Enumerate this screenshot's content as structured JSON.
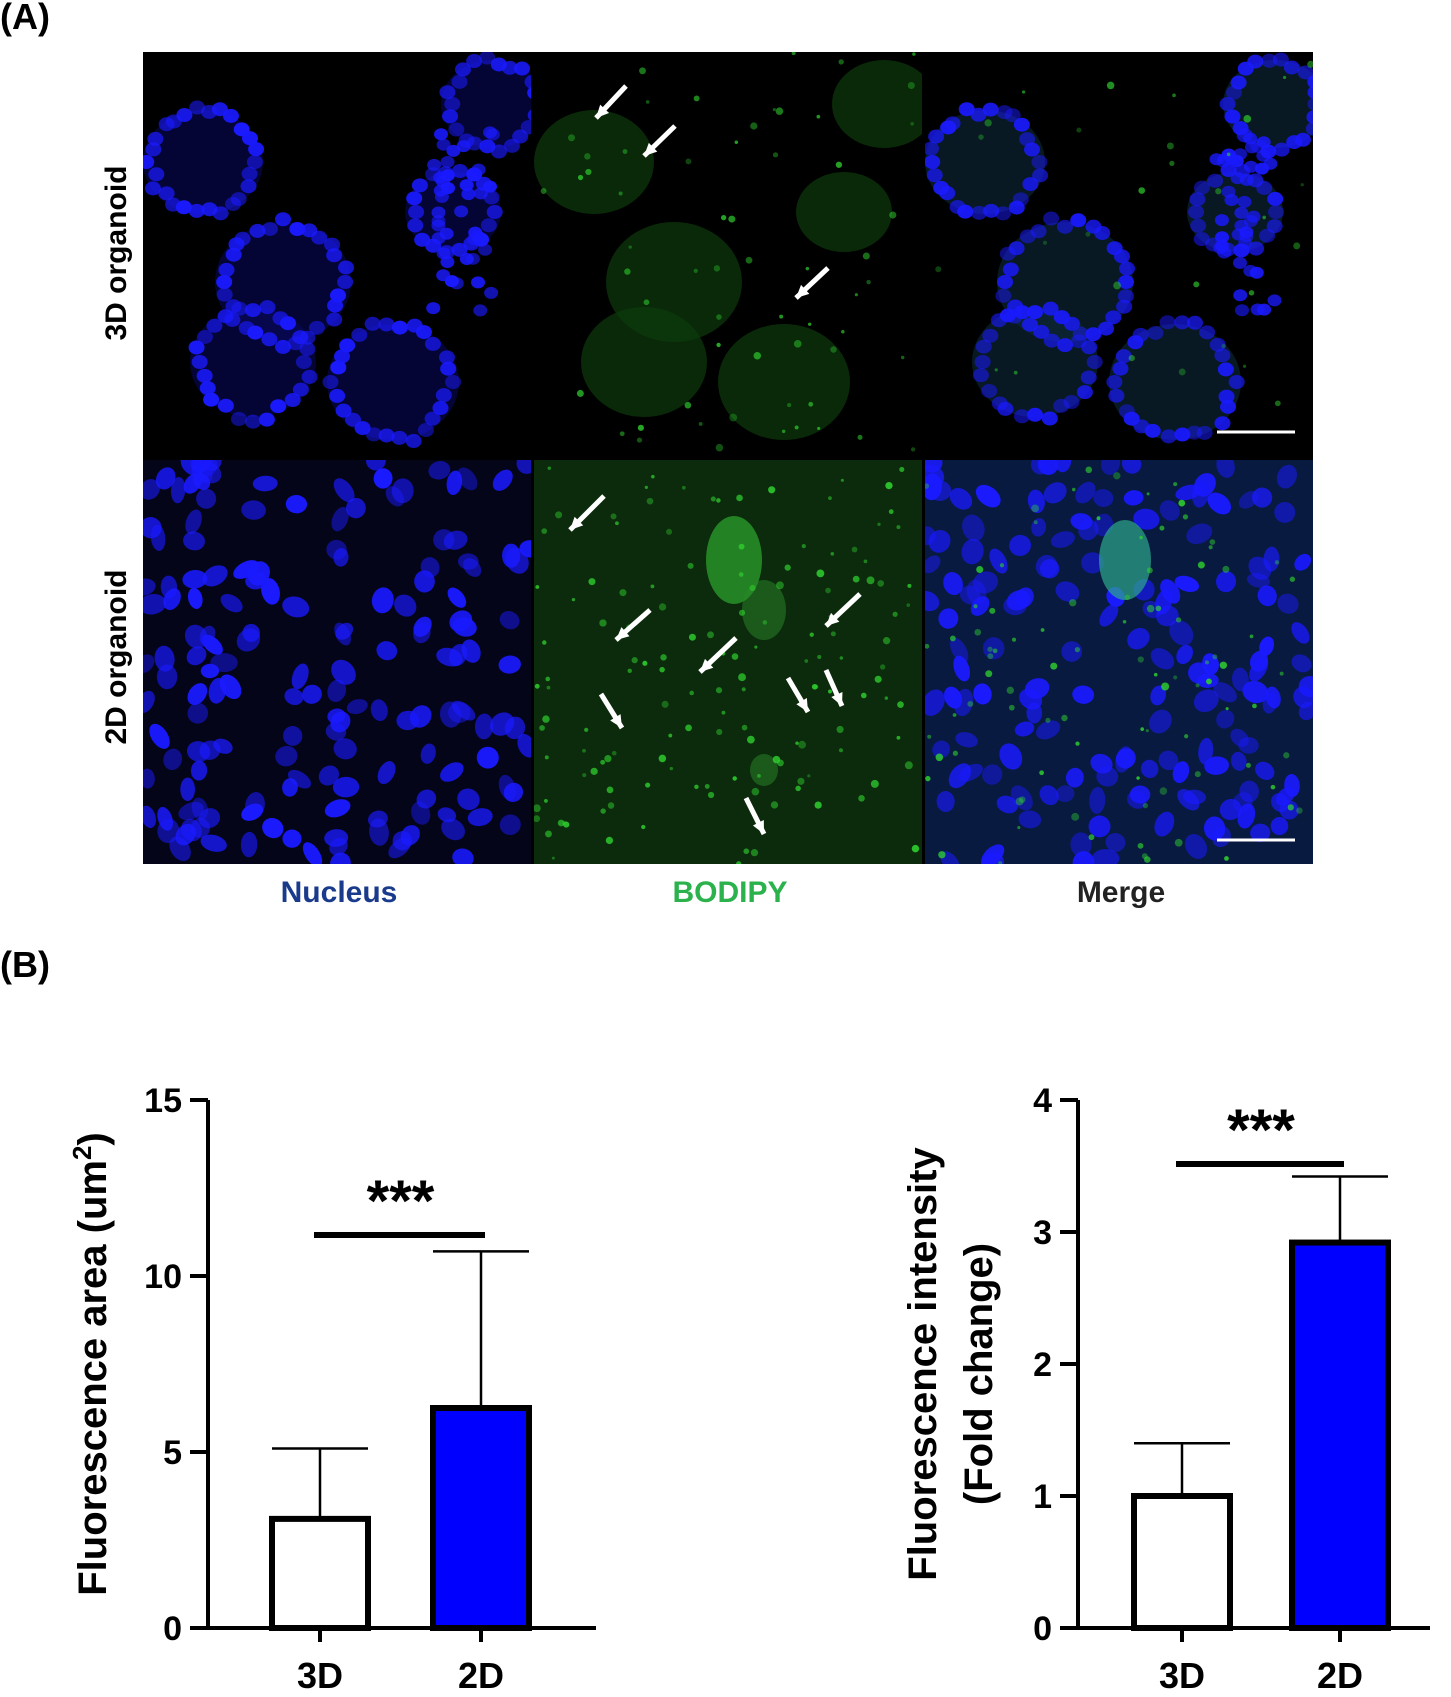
{
  "panels": {
    "a_label": "(A)",
    "b_label": "(B)"
  },
  "microscopy": {
    "rows": [
      "3D organoid",
      "2D organoid"
    ],
    "columns": [
      {
        "label": "Nucleus",
        "color": "#1a3a8c"
      },
      {
        "label": "BODIPY",
        "color": "#2bb24c"
      },
      {
        "label": "Merge",
        "color": "#222222"
      }
    ],
    "nucleus_color": "#1a1aff",
    "bodipy_color": "#2fd12f"
  },
  "chart_data": [
    {
      "type": "bar",
      "categories": [
        "3D",
        "2D"
      ],
      "values": [
        3.1,
        6.25
      ],
      "errors": [
        2.0,
        4.45
      ],
      "ylabel": "Fluorescence area (um2)",
      "ylim": [
        0,
        15
      ],
      "yticks": [
        0,
        5,
        10,
        15
      ],
      "bar_colors": [
        "#ffffff",
        "#0000ff"
      ],
      "significance": "***"
    },
    {
      "type": "bar",
      "categories": [
        "3D",
        "2D"
      ],
      "values": [
        1.0,
        2.92
      ],
      "errors": [
        0.4,
        0.5
      ],
      "ylabel": "Fluorescence intensity",
      "ylabel2": "(Fold change)",
      "ylim": [
        0,
        4
      ],
      "yticks": [
        0,
        1,
        2,
        3,
        4
      ],
      "bar_colors": [
        "#ffffff",
        "#0000ff"
      ],
      "significance": "***"
    }
  ]
}
